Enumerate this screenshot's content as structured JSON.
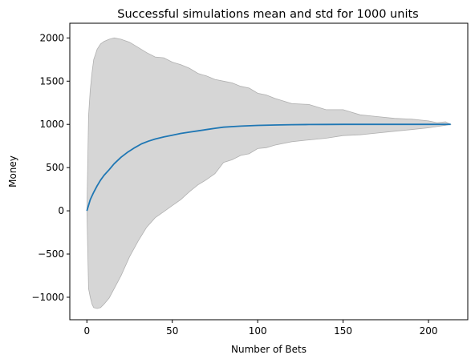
{
  "chart_data": {
    "type": "line",
    "title": "Successful simulations mean and std for 1000 units",
    "xlabel": "Number of Bets",
    "ylabel": "Money",
    "xlim": [
      -10,
      223
    ],
    "ylim": [
      -1260,
      2170
    ],
    "xticks": [
      0,
      50,
      100,
      150,
      200
    ],
    "xtick_labels": [
      "0",
      "50",
      "100",
      "150",
      "200"
    ],
    "yticks": [
      -1000,
      -500,
      0,
      500,
      1000,
      1500,
      2000
    ],
    "ytick_labels": [
      "−1000",
      "−500",
      "0",
      "500",
      "1000",
      "1500",
      "2000"
    ],
    "grid": false,
    "legend": "none",
    "colors": {
      "mean": "#1f77b4",
      "band": "#c0c0c0"
    },
    "series": [
      {
        "kind": "line",
        "x": [
          0,
          2,
          4,
          6,
          8,
          10,
          13,
          16,
          20,
          24,
          28,
          32,
          36,
          40,
          45,
          50,
          55,
          60,
          65,
          70,
          75,
          80,
          90,
          100,
          110,
          120,
          130,
          140,
          150,
          160,
          170,
          180,
          190,
          200,
          213
        ],
        "values": [
          0,
          130,
          215,
          290,
          355,
          410,
          475,
          545,
          620,
          680,
          730,
          775,
          805,
          830,
          855,
          875,
          895,
          910,
          925,
          940,
          955,
          968,
          980,
          988,
          993,
          996,
          998,
          999,
          1000,
          1000,
          1000,
          1000,
          1000,
          1000,
          1000
        ]
      },
      {
        "kind": "band",
        "x": [
          0,
          1,
          2,
          3,
          4,
          6,
          8,
          10,
          13,
          16,
          20,
          25,
          30,
          35,
          40,
          45,
          50,
          55,
          60,
          65,
          70,
          75,
          80,
          85,
          90,
          95,
          100,
          105,
          110,
          120,
          130,
          140,
          150,
          160,
          170,
          180,
          190,
          200,
          205,
          210,
          213
        ],
        "upper": [
          0,
          1100,
          1400,
          1600,
          1750,
          1870,
          1930,
          1960,
          1985,
          2000,
          1985,
          1950,
          1890,
          1830,
          1780,
          1770,
          1720,
          1690,
          1650,
          1590,
          1560,
          1520,
          1500,
          1480,
          1440,
          1420,
          1360,
          1340,
          1300,
          1240,
          1230,
          1170,
          1170,
          1110,
          1090,
          1070,
          1060,
          1040,
          1020,
          1030,
          1000
        ],
        "lower": [
          0,
          -900,
          -1000,
          -1080,
          -1120,
          -1130,
          -1120,
          -1080,
          -1010,
          -900,
          -750,
          -530,
          -350,
          -190,
          -80,
          -10,
          60,
          130,
          220,
          300,
          360,
          430,
          560,
          590,
          640,
          660,
          720,
          730,
          760,
          800,
          820,
          840,
          870,
          880,
          900,
          920,
          940,
          960,
          975,
          990,
          1000
        ]
      }
    ]
  }
}
